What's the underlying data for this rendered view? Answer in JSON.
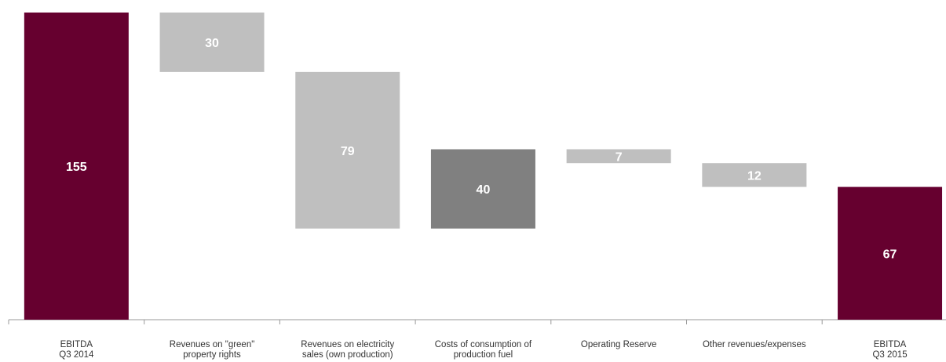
{
  "chart_data": {
    "type": "bar",
    "subtype": "waterfall",
    "title": "",
    "xlabel": "",
    "ylabel": "",
    "ylim": [
      0,
      155
    ],
    "grid": false,
    "legend": "none",
    "categories": [
      [
        "EBITDA",
        "Q3 2014"
      ],
      [
        "Revenues on \"green\"",
        "property rights"
      ],
      [
        "Revenues on electricity",
        "sales (own production)"
      ],
      [
        "Costs of consumption of",
        "production fuel"
      ],
      [
        "Operating Reserve"
      ],
      [
        "Other revenues/expenses"
      ],
      [
        "EBITDA",
        "Q3 2015"
      ]
    ],
    "bars": [
      {
        "kind": "total",
        "start": 0,
        "end": 155,
        "label": "155",
        "color": "#66002f"
      },
      {
        "kind": "decrease",
        "start": 155,
        "end": 125,
        "label": "30",
        "color": "#bfbfbf"
      },
      {
        "kind": "decrease",
        "start": 125,
        "end": 46,
        "label": "79",
        "color": "#bfbfbf"
      },
      {
        "kind": "increase",
        "start": 46,
        "end": 86,
        "label": "40",
        "color": "#808080"
      },
      {
        "kind": "decrease",
        "start": 86,
        "end": 79,
        "label": "7",
        "color": "#bfbfbf"
      },
      {
        "kind": "decrease",
        "start": 79,
        "end": 67,
        "label": "12",
        "color": "#bfbfbf"
      },
      {
        "kind": "total",
        "start": 0,
        "end": 67,
        "label": "67",
        "color": "#66002f"
      }
    ],
    "colors": {
      "total": "#66002f",
      "decrease": "#bfbfbf",
      "increase": "#808080",
      "axis": "#999999"
    }
  }
}
